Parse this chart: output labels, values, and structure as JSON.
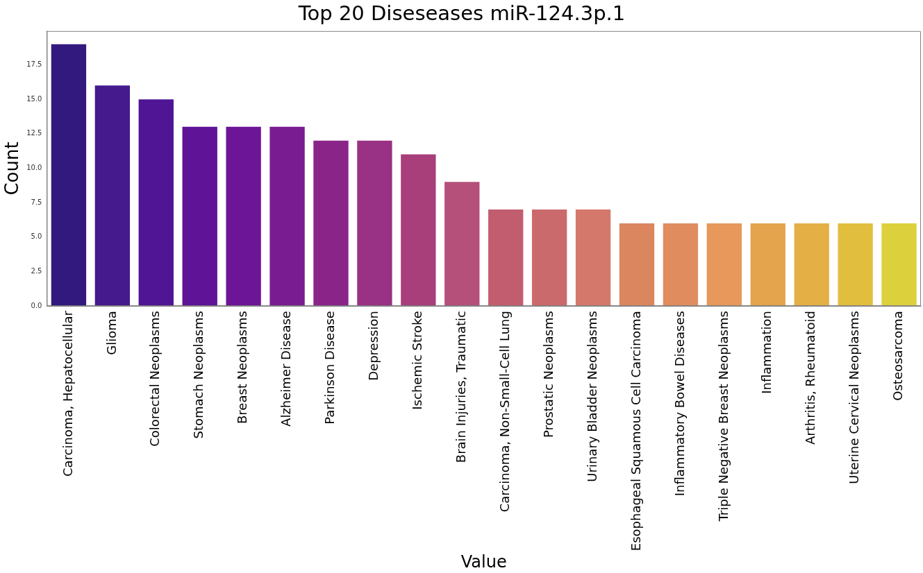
{
  "chart_data": {
    "type": "bar",
    "title": "Top 20 Diseseases miR-124.3p.1",
    "xlabel": "Value",
    "ylabel": "Count",
    "categories": [
      "Carcinoma, Hepatocellular",
      "Glioma",
      "Colorectal Neoplasms",
      "Stomach Neoplasms",
      "Breast Neoplasms",
      "Alzheimer Disease",
      "Parkinson Disease",
      "Depression",
      "Ischemic Stroke",
      "Brain Injuries, Traumatic",
      "Carcinoma, Non-Small-Cell Lung",
      "Prostatic Neoplasms",
      "Urinary Bladder Neoplasms",
      "Esophageal Squamous Cell Carcinoma",
      "Inflammatory Bowel Diseases",
      "Triple Negative Breast Neoplasms",
      "Inflammation",
      "Arthritis, Rheumatoid",
      "Uterine Cervical Neoplasms",
      "Osteosarcoma"
    ],
    "values": [
      19,
      16,
      15,
      13,
      13,
      13,
      12,
      12,
      11,
      9,
      7,
      7,
      7,
      6,
      6,
      6,
      6,
      6,
      6,
      6
    ],
    "colors": [
      "#32197e",
      "#441a8c",
      "#501595",
      "#5f1396",
      "#6c1597",
      "#7a1c91",
      "#8a2489",
      "#993185",
      "#a83f7b",
      "#b5507a",
      "#c25d6f",
      "#cb6a6c",
      "#d4786b",
      "#dc8660",
      "#e08c5f",
      "#e7985a",
      "#e3a44d",
      "#e4b046",
      "#e2be3e",
      "#ddd03d"
    ],
    "ylim": [
      0,
      19.95
    ],
    "yticks": [
      {
        "value": 0,
        "label": "0.0"
      },
      2.5,
      {
        "value": 5,
        "label": "5.0"
      },
      7.5,
      {
        "value": 10,
        "label": "10.0"
      },
      12.5,
      {
        "value": 15,
        "label": "15.0"
      },
      17.5
    ],
    "grid": false,
    "legend": false
  }
}
